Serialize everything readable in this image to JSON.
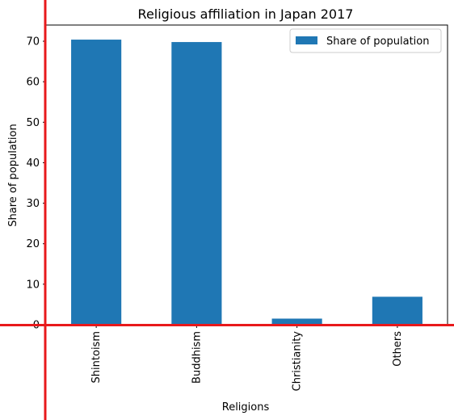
{
  "chart_data": {
    "type": "bar",
    "title": "Religious affiliation in Japan 2017",
    "xlabel": "Religions",
    "ylabel": "Share of population",
    "categories": [
      "Shintoism",
      "Buddhism",
      "Christianity",
      "Others"
    ],
    "series": [
      {
        "name": "Share of population",
        "values": [
          70.4,
          69.8,
          1.5,
          6.9
        ],
        "color": "#1f77b4"
      }
    ],
    "ylim": [
      0,
      74
    ],
    "yticks": [
      0,
      10,
      20,
      30,
      40,
      50,
      60,
      70
    ],
    "grid": false,
    "legend_position": "top-right"
  },
  "overlay": {
    "crosshair_color": "#e8191b"
  }
}
